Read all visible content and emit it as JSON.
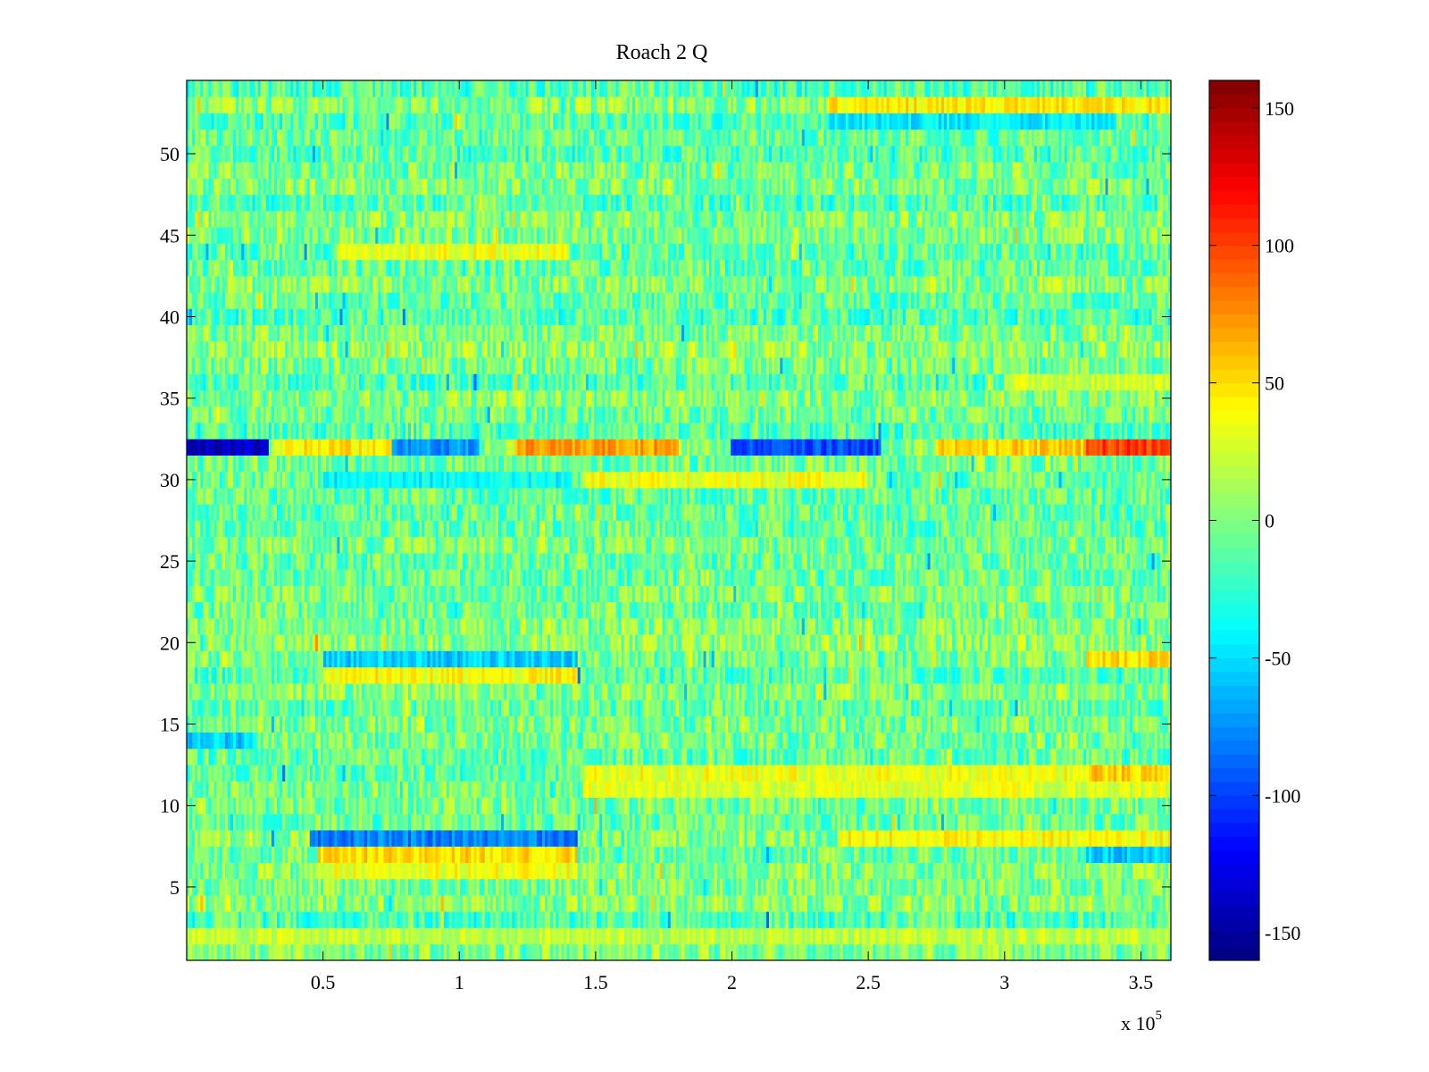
{
  "chart_data": {
    "type": "heatmap",
    "title": "Roach 2 Q",
    "xlabel": "",
    "ylabel": "",
    "x_range": [
      0,
      361000
    ],
    "y_range": [
      0.5,
      54.5
    ],
    "x_ticks": [
      {
        "value": 50000,
        "label": "0.5"
      },
      {
        "value": 100000,
        "label": "1"
      },
      {
        "value": 150000,
        "label": "1.5"
      },
      {
        "value": 200000,
        "label": "2"
      },
      {
        "value": 250000,
        "label": "2.5"
      },
      {
        "value": 300000,
        "label": "3"
      },
      {
        "value": 350000,
        "label": "3.5"
      }
    ],
    "x_multiplier": {
      "prefix": "x 10",
      "exponent": "5"
    },
    "y_ticks": [
      {
        "value": 5,
        "label": "5"
      },
      {
        "value": 10,
        "label": "10"
      },
      {
        "value": 15,
        "label": "15"
      },
      {
        "value": 20,
        "label": "20"
      },
      {
        "value": 25,
        "label": "25"
      },
      {
        "value": 30,
        "label": "30"
      },
      {
        "value": 35,
        "label": "35"
      },
      {
        "value": 40,
        "label": "40"
      },
      {
        "value": 45,
        "label": "45"
      },
      {
        "value": 50,
        "label": "50"
      }
    ],
    "rows": 54,
    "colormap": "jet",
    "color_range": [
      -160,
      160
    ],
    "colorbar_ticks": [
      {
        "value": 150,
        "label": "150"
      },
      {
        "value": 100,
        "label": "100"
      },
      {
        "value": 50,
        "label": "50"
      },
      {
        "value": 0,
        "label": "0"
      },
      {
        "value": -50,
        "label": "-50"
      },
      {
        "value": -100,
        "label": "-100"
      },
      {
        "value": -150,
        "label": "-150"
      }
    ],
    "base_row_level": -5,
    "noise_amplitude": 32,
    "notable_segments": [
      {
        "row": 32,
        "x_start": 0,
        "x_end": 30000,
        "value": -140
      },
      {
        "row": 32,
        "x_start": 35000,
        "x_end": 100000,
        "value": 45
      },
      {
        "row": 32,
        "x_start": 75000,
        "x_end": 107000,
        "value": -75
      },
      {
        "row": 32,
        "x_start": 120000,
        "x_end": 180000,
        "value": 70
      },
      {
        "row": 32,
        "x_start": 200000,
        "x_end": 255000,
        "value": -95
      },
      {
        "row": 32,
        "x_start": 275000,
        "x_end": 360000,
        "value": 55
      },
      {
        "row": 32,
        "x_start": 330000,
        "x_end": 361000,
        "value": 100
      },
      {
        "row": 8,
        "x_start": 45000,
        "x_end": 143000,
        "value": -80
      },
      {
        "row": 7,
        "x_start": 48000,
        "x_end": 143000,
        "value": 50
      },
      {
        "row": 6,
        "x_start": 48000,
        "x_end": 143000,
        "value": 35
      },
      {
        "row": 19,
        "x_start": 50000,
        "x_end": 143000,
        "value": -55
      },
      {
        "row": 18,
        "x_start": 50000,
        "x_end": 143000,
        "value": 40
      },
      {
        "row": 14,
        "x_start": 0,
        "x_end": 25000,
        "value": -55
      },
      {
        "row": 12,
        "x_start": 145000,
        "x_end": 361000,
        "value": 35
      },
      {
        "row": 11,
        "x_start": 145000,
        "x_end": 361000,
        "value": 30
      },
      {
        "row": 44,
        "x_start": 55000,
        "x_end": 140000,
        "value": 35
      },
      {
        "row": 53,
        "x_start": 235000,
        "x_end": 361000,
        "value": 45
      },
      {
        "row": 52,
        "x_start": 235000,
        "x_end": 340000,
        "value": -45
      },
      {
        "row": 30,
        "x_start": 145000,
        "x_end": 250000,
        "value": 35
      },
      {
        "row": 30,
        "x_start": 50000,
        "x_end": 140000,
        "value": -40
      },
      {
        "row": 8,
        "x_start": 240000,
        "x_end": 361000,
        "value": 40
      },
      {
        "row": 19,
        "x_start": 330000,
        "x_end": 361000,
        "value": 50
      },
      {
        "row": 7,
        "x_start": 330000,
        "x_end": 361000,
        "value": -55
      },
      {
        "row": 12,
        "x_start": 330000,
        "x_end": 361000,
        "value": 55
      },
      {
        "row": 2,
        "x_start": 0,
        "x_end": 361000,
        "value": 20
      },
      {
        "row": 36,
        "x_start": 300000,
        "x_end": 361000,
        "value": 25
      }
    ]
  }
}
